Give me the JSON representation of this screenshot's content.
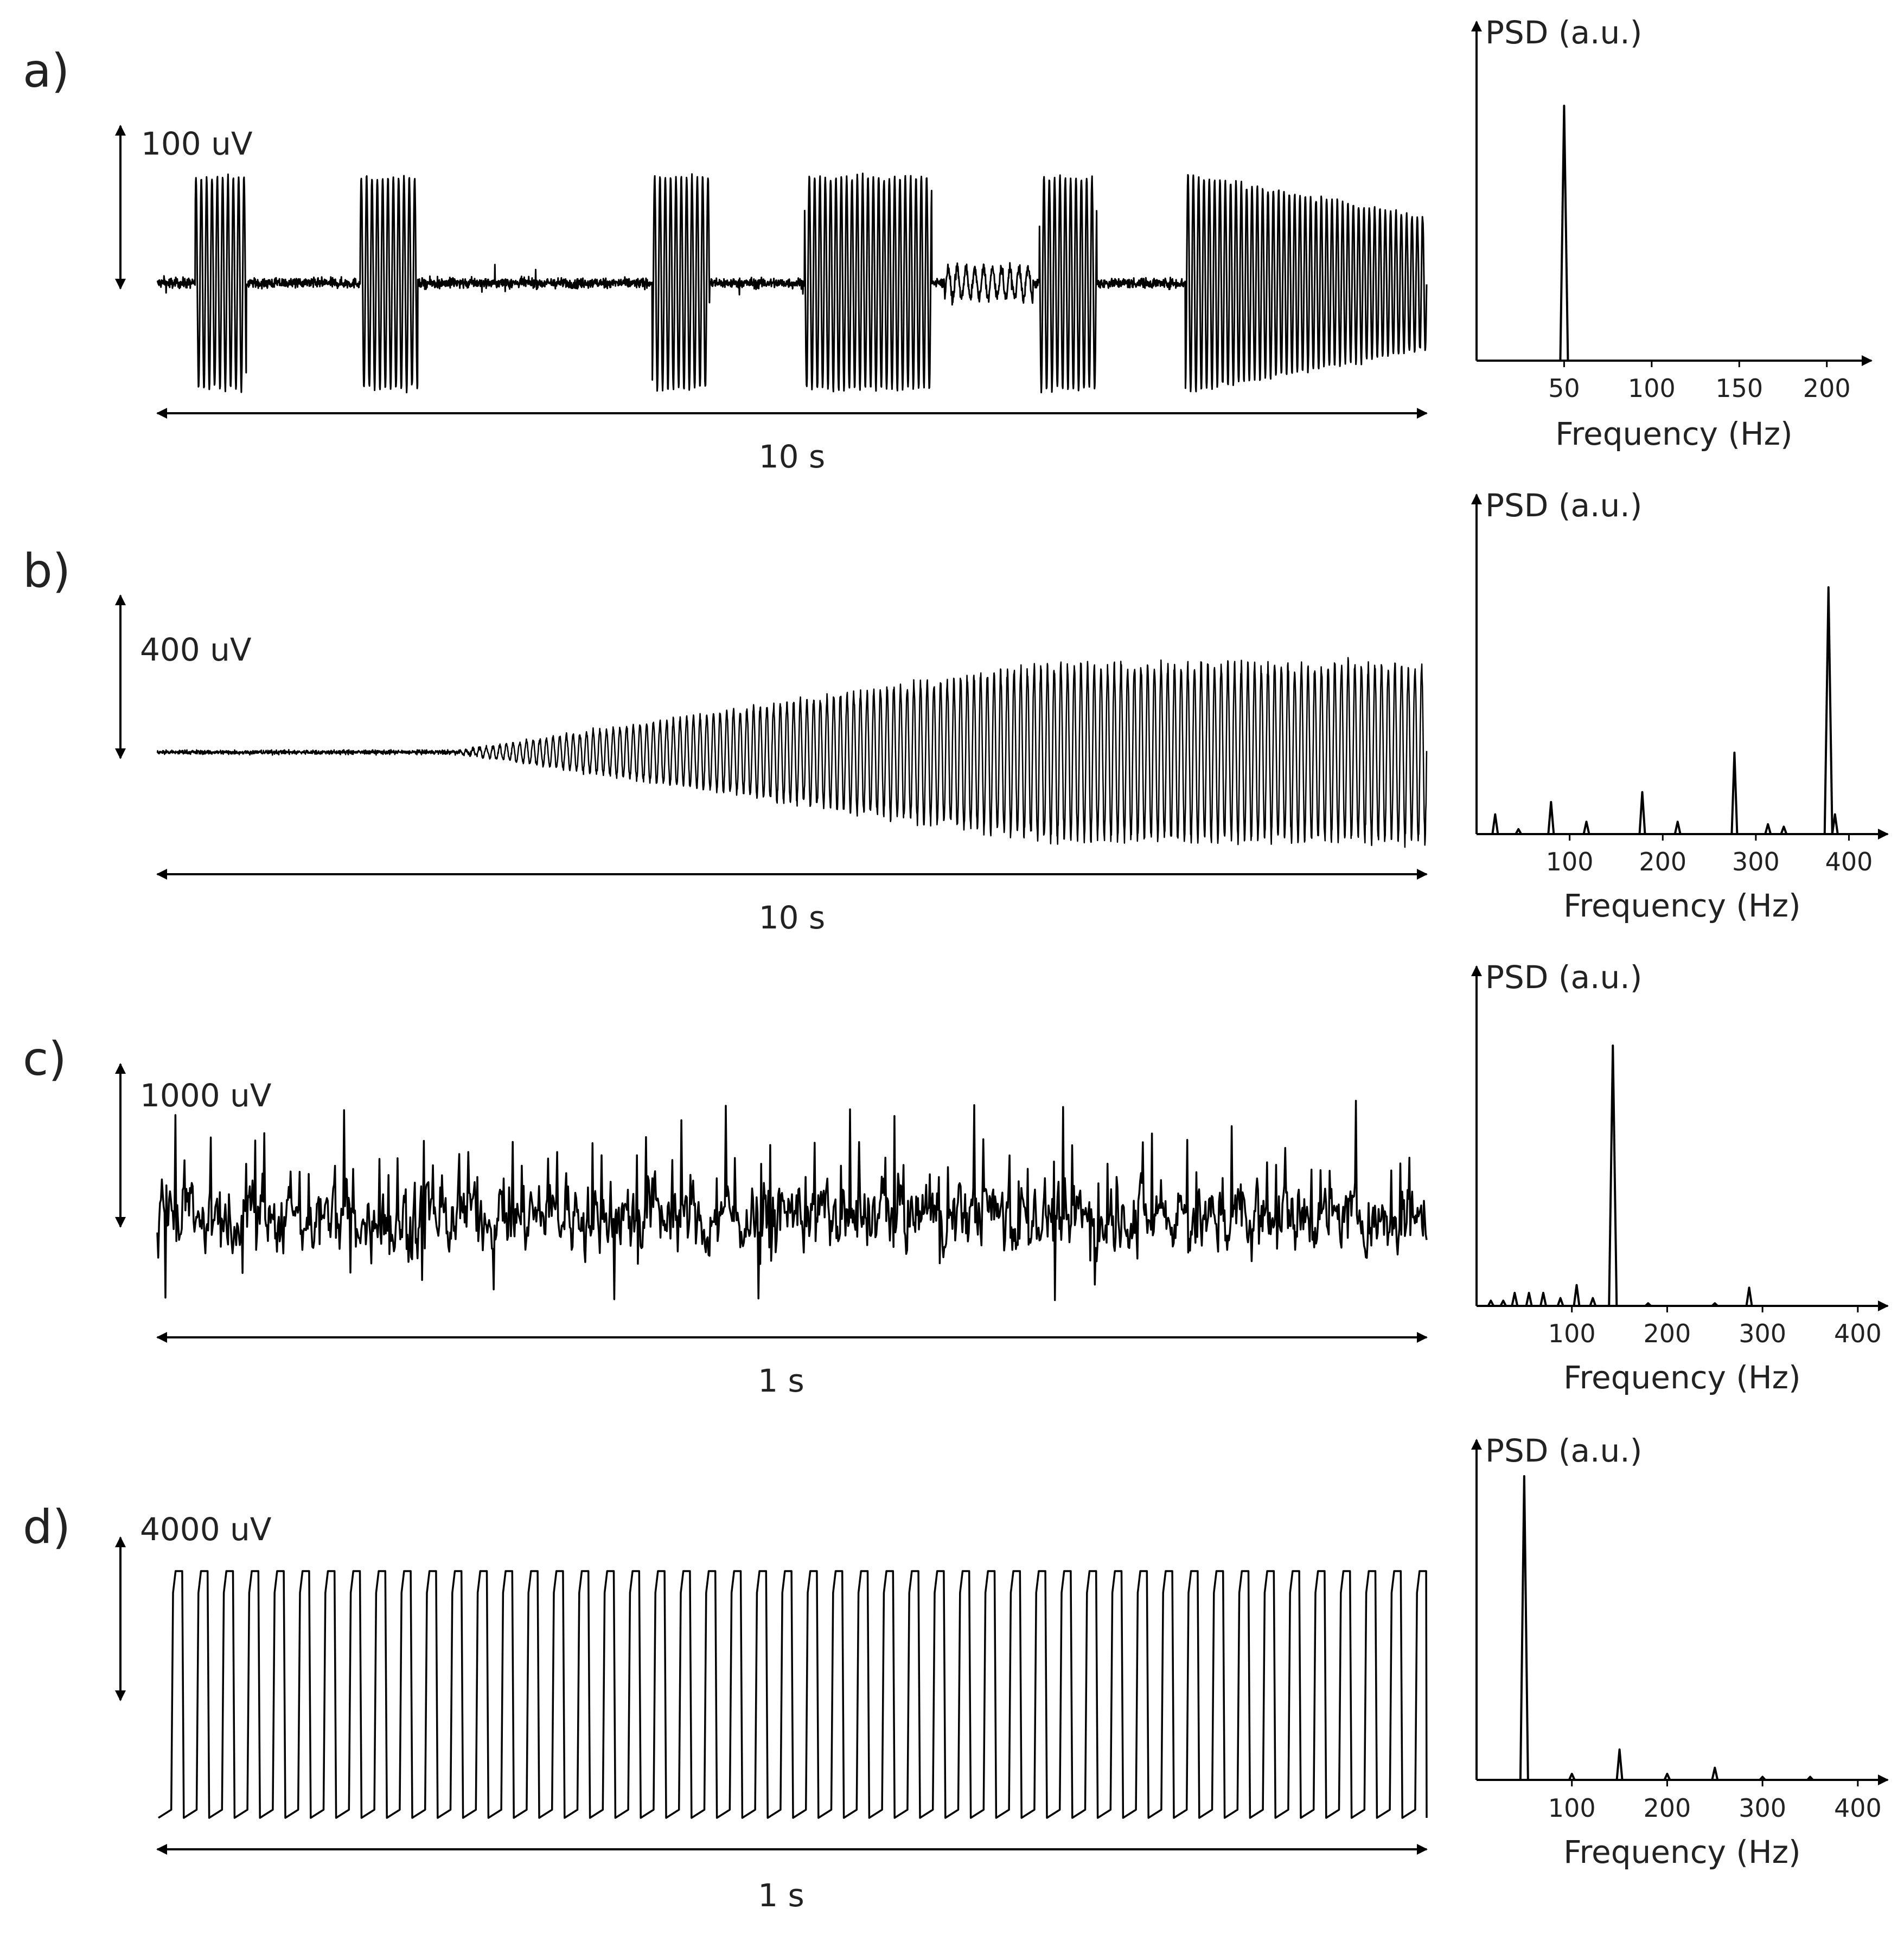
{
  "chart_data": [
    {
      "panel": "a)",
      "type": "line",
      "trace": {
        "amplitude_scale": "100 uV",
        "time_scale": "10 s",
        "pattern": "bursts",
        "bursts": [
          [
            0.3,
            0.7
          ],
          [
            1.6,
            2.05
          ],
          [
            3.9,
            4.35
          ],
          [
            5.1,
            6.1
          ],
          [
            6.95,
            7.4
          ],
          [
            8.1,
            10.0
          ]
        ]
      },
      "psd": {
        "ylabel": "PSD (a.u.)",
        "xlabel": "Frequency (Hz)",
        "xlim": [
          0,
          210
        ],
        "xticks": [
          50,
          100,
          150,
          200
        ],
        "peaks": [
          [
            50,
            1.0
          ]
        ]
      }
    },
    {
      "panel": "b)",
      "type": "line",
      "trace": {
        "amplitude_scale": "400 uV",
        "time_scale": "10 s",
        "pattern": "growing-oscillation",
        "onset_s": 2.3,
        "plateau_s": 7.0
      },
      "psd": {
        "ylabel": "PSD (a.u.)",
        "xlabel": "Frequency (Hz)",
        "xlim": [
          0,
          430
        ],
        "xticks": [
          100,
          200,
          300,
          400
        ],
        "peaks": [
          [
            20,
            0.08
          ],
          [
            45,
            0.02
          ],
          [
            80,
            0.13
          ],
          [
            118,
            0.05
          ],
          [
            178,
            0.17
          ],
          [
            216,
            0.05
          ],
          [
            277,
            0.33
          ],
          [
            313,
            0.04
          ],
          [
            330,
            0.03
          ],
          [
            378,
            1.0
          ],
          [
            385,
            0.08
          ]
        ]
      }
    },
    {
      "panel": "c)",
      "type": "line",
      "trace": {
        "amplitude_scale": "1000 uV",
        "time_scale": "1 s",
        "pattern": "irregular-spiking"
      },
      "psd": {
        "ylabel": "PSD (a.u.)",
        "xlabel": "Frequency (Hz)",
        "xlim": [
          0,
          420
        ],
        "xticks": [
          100,
          200,
          300,
          400
        ],
        "peaks": [
          [
            15,
            0.02
          ],
          [
            28,
            0.02
          ],
          [
            40,
            0.05
          ],
          [
            55,
            0.05
          ],
          [
            70,
            0.05
          ],
          [
            88,
            0.03
          ],
          [
            105,
            0.08
          ],
          [
            122,
            0.03
          ],
          [
            143,
            1.0
          ],
          [
            180,
            0.01
          ],
          [
            250,
            0.01
          ],
          [
            286,
            0.07
          ]
        ]
      }
    },
    {
      "panel": "d)",
      "type": "line",
      "trace": {
        "amplitude_scale": "4000 uV",
        "time_scale": "1 s",
        "pattern": "sawtooth",
        "cycles": 50
      },
      "psd": {
        "ylabel": "PSD (a.u.)",
        "xlabel": "Frequency (Hz)",
        "xlim": [
          0,
          420
        ],
        "xticks": [
          100,
          200,
          300,
          400
        ],
        "peaks": [
          [
            50,
            1.0
          ],
          [
            100,
            0.02
          ],
          [
            150,
            0.1
          ],
          [
            200,
            0.02
          ],
          [
            250,
            0.04
          ],
          [
            300,
            0.01
          ],
          [
            350,
            0.01
          ]
        ]
      }
    }
  ]
}
